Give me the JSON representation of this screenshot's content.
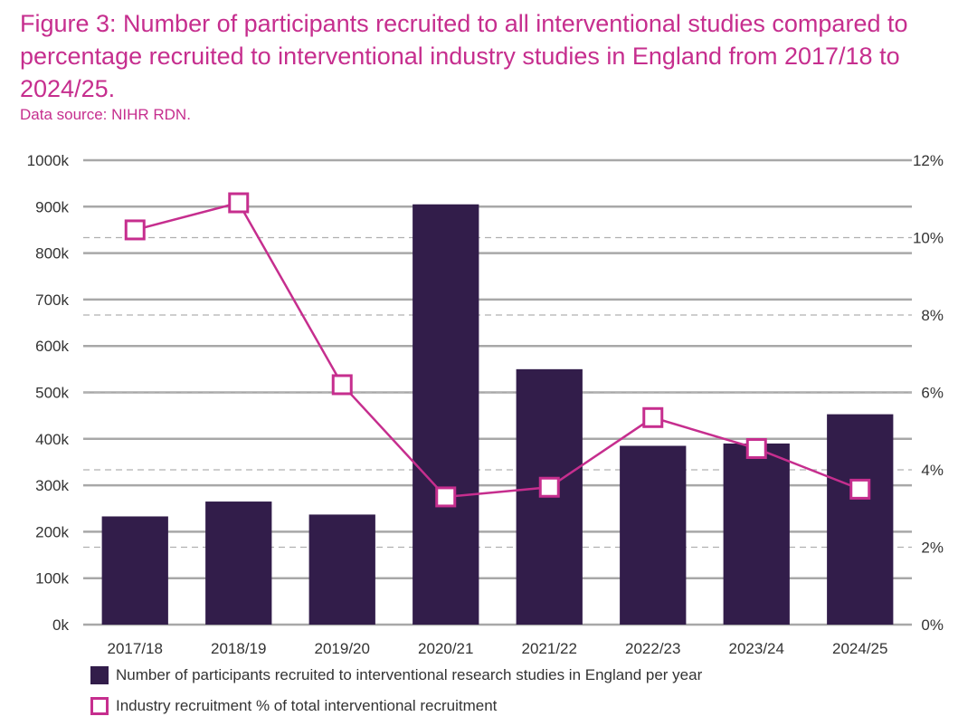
{
  "title": "Figure 3: Number of participants recruited to all interventional studies compared to percentage recruited to interventional industry studies in England from 2017/18 to 2024/25.",
  "source": "Data source: NIHR RDN.",
  "colors": {
    "bar": "#321d4a",
    "line": "#c62e8e",
    "grid": "#a8a8a8",
    "text": "#333333"
  },
  "chart_data": {
    "type": "bar",
    "categories": [
      "2017/18",
      "2018/19",
      "2019/20",
      "2020/21",
      "2021/22",
      "2022/23",
      "2023/24",
      "2024/25"
    ],
    "series": [
      {
        "name": "Number of participants recruited to interventional research studies in England per year",
        "type": "bar",
        "axis": "left",
        "values": [
          233000,
          265000,
          237000,
          905000,
          550000,
          385000,
          390000,
          453000
        ]
      },
      {
        "name": "Industry recruitment % of total interventional recruitment",
        "type": "line",
        "axis": "right",
        "values": [
          10.2,
          10.9,
          6.2,
          3.3,
          3.55,
          5.35,
          4.55,
          3.5
        ]
      }
    ],
    "y_left": {
      "min": 0,
      "max": 1000000,
      "ticks": [
        0,
        100000,
        200000,
        300000,
        400000,
        500000,
        600000,
        700000,
        800000,
        900000,
        1000000
      ],
      "tick_labels": [
        "0k",
        "100k",
        "200k",
        "300k",
        "400k",
        "500k",
        "600k",
        "700k",
        "800k",
        "900k",
        "1000k"
      ]
    },
    "y_right": {
      "min": 0,
      "max": 12,
      "ticks": [
        0,
        2,
        4,
        6,
        8,
        10,
        12
      ],
      "tick_labels": [
        "0%",
        "2%",
        "4%",
        "6%",
        "8%",
        "10%",
        "12%"
      ]
    },
    "legend": [
      {
        "label": "Number of participants recruited to interventional research studies in England per year",
        "style": "filled-square"
      },
      {
        "label": "Industry recruitment % of total interventional recruitment",
        "style": "outlined-square"
      }
    ]
  }
}
